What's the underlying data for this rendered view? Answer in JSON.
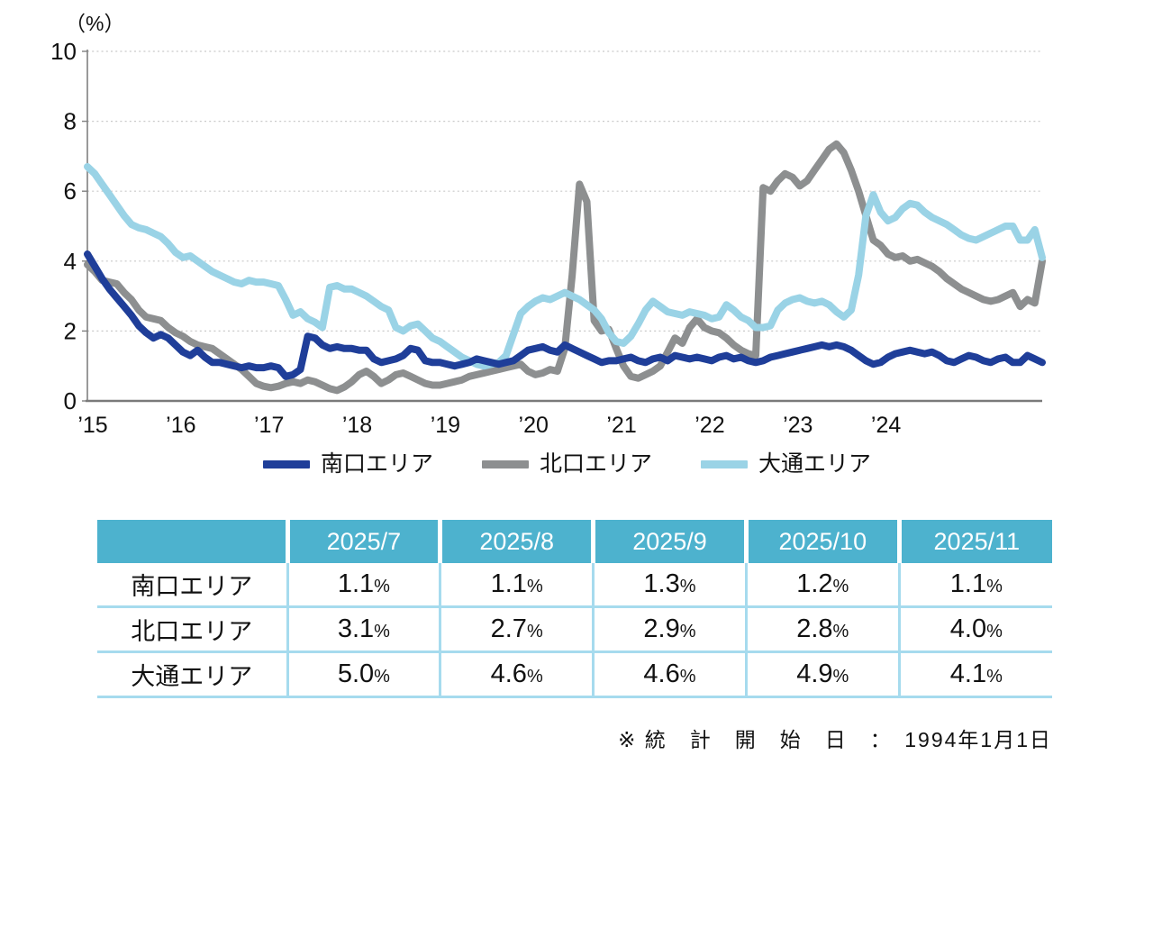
{
  "chart": {
    "y_axis_unit": "（%）"
  },
  "chart_data": {
    "type": "line",
    "title": "",
    "xlabel": "",
    "ylabel": "（%）",
    "ylim": [
      0,
      10
    ],
    "y_ticks": [
      0,
      2,
      4,
      6,
      8,
      10
    ],
    "grid": "dotted horizontal",
    "legend_position": "bottom",
    "x_start": "2015-01",
    "x_end": "2025-11",
    "x_monthly": true,
    "x_tick_years": [
      2015,
      2016,
      2017,
      2018,
      2019,
      2020,
      2021,
      2022,
      2023,
      2024
    ],
    "x_tick_labels": [
      "’15",
      "’16",
      "’17",
      "’18",
      "’19",
      "’20",
      "’21",
      "’22",
      "’23",
      "’24"
    ],
    "series": [
      {
        "name": "北口エリア",
        "color": "#8d8f90",
        "values": [
          3.9,
          3.7,
          3.45,
          3.4,
          3.35,
          3.1,
          2.9,
          2.6,
          2.4,
          2.35,
          2.3,
          2.1,
          1.95,
          1.85,
          1.7,
          1.6,
          1.55,
          1.5,
          1.35,
          1.2,
          1.05,
          0.9,
          0.7,
          0.5,
          0.42,
          0.38,
          0.42,
          0.5,
          0.55,
          0.5,
          0.6,
          0.55,
          0.45,
          0.35,
          0.3,
          0.4,
          0.55,
          0.75,
          0.85,
          0.7,
          0.5,
          0.6,
          0.75,
          0.8,
          0.7,
          0.6,
          0.5,
          0.45,
          0.45,
          0.5,
          0.55,
          0.6,
          0.7,
          0.75,
          0.8,
          0.85,
          0.9,
          0.95,
          1.0,
          1.05,
          0.85,
          0.75,
          0.8,
          0.9,
          0.85,
          1.5,
          3.6,
          6.2,
          5.7,
          2.3,
          2.0,
          2.05,
          1.5,
          1.0,
          0.7,
          0.65,
          0.75,
          0.85,
          1.0,
          1.4,
          1.8,
          1.65,
          2.1,
          2.35,
          2.1,
          2.0,
          1.95,
          1.8,
          1.6,
          1.45,
          1.35,
          1.3,
          6.1,
          6.0,
          6.3,
          6.5,
          6.4,
          6.15,
          6.3,
          6.6,
          6.9,
          7.2,
          7.35,
          7.1,
          6.6,
          6.0,
          5.3,
          4.6,
          4.45,
          4.2,
          4.1,
          4.15,
          4.0,
          4.05,
          3.95,
          3.85,
          3.7,
          3.5,
          3.35,
          3.2,
          3.1,
          3.0,
          2.9,
          2.85,
          2.9,
          3.0,
          3.1,
          2.7,
          2.9,
          2.8,
          4.0
        ]
      },
      {
        "name": "大通エリア",
        "color": "#9ad3e6",
        "values": [
          6.7,
          6.5,
          6.2,
          5.9,
          5.6,
          5.3,
          5.05,
          4.95,
          4.9,
          4.8,
          4.7,
          4.5,
          4.25,
          4.1,
          4.15,
          4.0,
          3.85,
          3.7,
          3.6,
          3.5,
          3.4,
          3.35,
          3.45,
          3.4,
          3.4,
          3.35,
          3.3,
          2.9,
          2.45,
          2.55,
          2.35,
          2.25,
          2.1,
          3.25,
          3.3,
          3.2,
          3.2,
          3.1,
          3.0,
          2.85,
          2.7,
          2.6,
          2.1,
          2.0,
          2.15,
          2.2,
          2.0,
          1.8,
          1.7,
          1.55,
          1.4,
          1.25,
          1.15,
          1.05,
          1.0,
          1.05,
          1.1,
          1.3,
          1.9,
          2.5,
          2.7,
          2.85,
          2.95,
          2.9,
          3.0,
          3.1,
          3.0,
          2.9,
          2.75,
          2.6,
          2.35,
          1.95,
          1.7,
          1.65,
          1.85,
          2.2,
          2.6,
          2.85,
          2.7,
          2.55,
          2.5,
          2.45,
          2.55,
          2.5,
          2.45,
          2.35,
          2.4,
          2.75,
          2.6,
          2.4,
          2.3,
          2.1,
          2.1,
          2.15,
          2.6,
          2.8,
          2.9,
          2.95,
          2.85,
          2.8,
          2.85,
          2.75,
          2.55,
          2.4,
          2.6,
          3.6,
          5.3,
          5.9,
          5.4,
          5.15,
          5.25,
          5.5,
          5.65,
          5.6,
          5.4,
          5.25,
          5.15,
          5.05,
          4.9,
          4.75,
          4.65,
          4.6,
          4.7,
          4.8,
          4.9,
          5.0,
          5.0,
          4.6,
          4.6,
          4.9,
          4.1
        ]
      },
      {
        "name": "南口エリア",
        "color": "#1f3e99",
        "values": [
          4.2,
          3.85,
          3.5,
          3.2,
          2.95,
          2.7,
          2.45,
          2.15,
          1.95,
          1.8,
          1.9,
          1.8,
          1.6,
          1.4,
          1.3,
          1.45,
          1.25,
          1.1,
          1.1,
          1.05,
          1.0,
          0.95,
          1.0,
          0.95,
          0.95,
          1.0,
          0.95,
          0.7,
          0.75,
          0.9,
          1.85,
          1.8,
          1.6,
          1.5,
          1.55,
          1.5,
          1.5,
          1.45,
          1.45,
          1.2,
          1.1,
          1.15,
          1.2,
          1.3,
          1.5,
          1.45,
          1.15,
          1.1,
          1.1,
          1.05,
          1.0,
          1.05,
          1.1,
          1.2,
          1.15,
          1.1,
          1.05,
          1.1,
          1.15,
          1.3,
          1.45,
          1.5,
          1.55,
          1.45,
          1.4,
          1.6,
          1.5,
          1.4,
          1.3,
          1.2,
          1.1,
          1.15,
          1.15,
          1.2,
          1.25,
          1.15,
          1.1,
          1.2,
          1.25,
          1.15,
          1.3,
          1.25,
          1.2,
          1.25,
          1.2,
          1.15,
          1.25,
          1.3,
          1.2,
          1.25,
          1.15,
          1.1,
          1.15,
          1.25,
          1.3,
          1.35,
          1.4,
          1.45,
          1.5,
          1.55,
          1.6,
          1.55,
          1.6,
          1.55,
          1.45,
          1.3,
          1.15,
          1.05,
          1.1,
          1.25,
          1.35,
          1.4,
          1.45,
          1.4,
          1.35,
          1.4,
          1.3,
          1.15,
          1.1,
          1.2,
          1.3,
          1.25,
          1.15,
          1.1,
          1.2,
          1.25,
          1.1,
          1.1,
          1.3,
          1.2,
          1.1
        ]
      }
    ]
  },
  "legend": {
    "items": [
      {
        "label": "南口エリア",
        "color": "#1f3e99"
      },
      {
        "label": "北口エリア",
        "color": "#8d8f90"
      },
      {
        "label": "大通エリア",
        "color": "#9ad3e6"
      }
    ]
  },
  "table": {
    "header_bg": "#4db2ce",
    "line_color": "#a6dbee",
    "columns": [
      "2025/7",
      "2025/8",
      "2025/9",
      "2025/10",
      "2025/11"
    ],
    "unit_suffix": "%",
    "rows": [
      {
        "label": "南口エリア",
        "values": [
          "1.1",
          "1.1",
          "1.3",
          "1.2",
          "1.1"
        ]
      },
      {
        "label": "北口エリア",
        "values": [
          "3.1",
          "2.7",
          "2.9",
          "2.8",
          "4.0"
        ]
      },
      {
        "label": "大通エリア",
        "values": [
          "5.0",
          "4.6",
          "4.6",
          "4.9",
          "4.1"
        ]
      }
    ]
  },
  "footnote": "※ 統　計　開　始　日　：　1994年1月1日"
}
